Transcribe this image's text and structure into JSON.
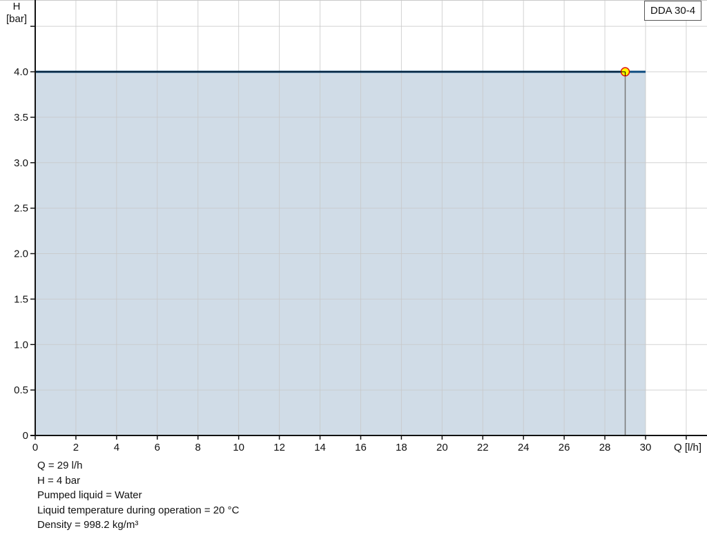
{
  "chart_data": {
    "type": "area",
    "xlabel": "Q [l/h]",
    "ylabel_line1": "H",
    "ylabel_line2": "[bar]",
    "xlim": [
      0,
      33
    ],
    "ylim": [
      0,
      4.79
    ],
    "xticks": [
      0,
      2,
      4,
      6,
      8,
      10,
      12,
      14,
      16,
      18,
      20,
      22,
      24,
      26,
      28,
      30
    ],
    "xgrid": [
      0,
      2,
      4,
      6,
      8,
      10,
      12,
      14,
      16,
      18,
      20,
      22,
      24,
      26,
      28,
      30,
      32
    ],
    "yticks": [
      "0",
      "0.5",
      "1.0",
      "1.5",
      "2.0",
      "2.5",
      "3.0",
      "3.5",
      "4.0"
    ],
    "ytick_values": [
      0,
      0.5,
      1.0,
      1.5,
      2.0,
      2.5,
      3.0,
      3.5,
      4.0,
      4.5
    ],
    "grid": true,
    "legend_placement": "top-right",
    "series": [
      {
        "name": "DDA 30-4",
        "x": [
          0,
          30
        ],
        "y": [
          4.0,
          4.0
        ],
        "color": "#0b4a7e",
        "fill": "#d0dce7"
      }
    ],
    "operating_point": {
      "x": 29,
      "y": 4.0,
      "fill": "#ffff00",
      "stroke": "#e01010"
    }
  },
  "info": {
    "lines": [
      "Q = 29 l/h",
      "H = 4 bar",
      "Pumped liquid = Water",
      "Liquid temperature during operation = 20 °C",
      "Density = 998.2 kg/m³"
    ]
  }
}
